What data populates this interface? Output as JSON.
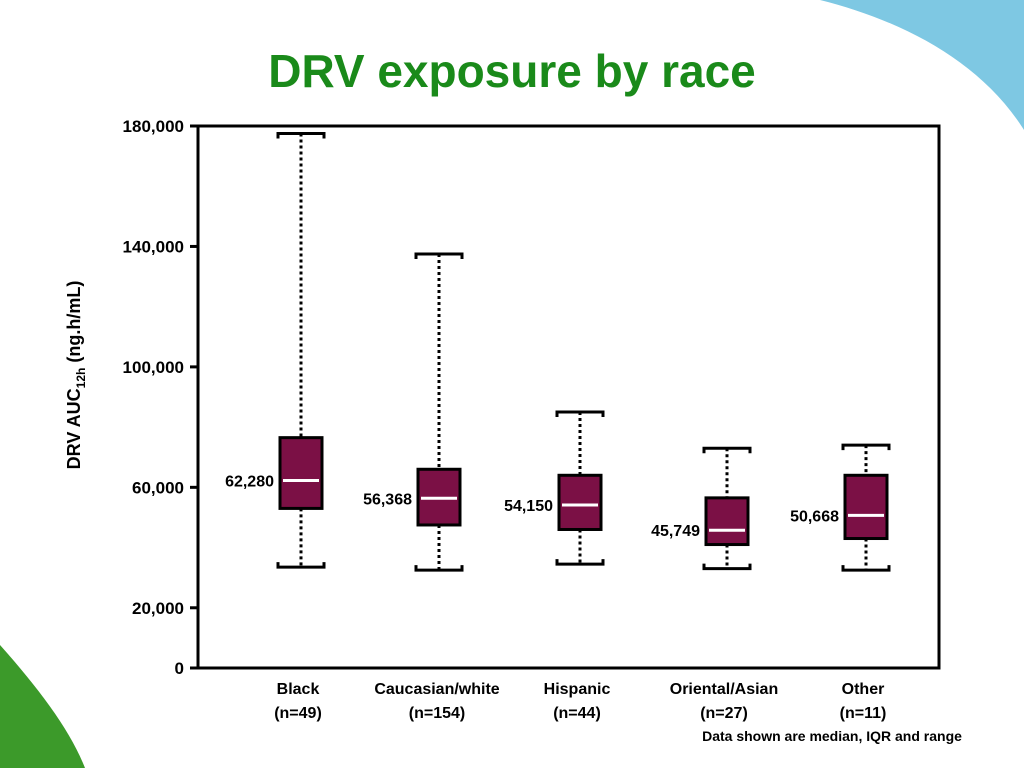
{
  "slide": {
    "title": "DRV exposure by race",
    "footnote": "Data shown are median, IQR and range"
  },
  "colors": {
    "title": "#1a8a1a",
    "box_fill": "#7b1045",
    "median_line": "#ffffff",
    "corner_blue": "#7ec8e3",
    "corner_green": "#3c9a2a"
  },
  "chart_data": {
    "type": "boxplot",
    "ylabel_main": "DRV AUC",
    "ylabel_sub": "12h",
    "ylabel_unit": " (ng.h/mL)",
    "ylim": [
      0,
      180000
    ],
    "yticks": [
      0,
      20000,
      60000,
      100000,
      140000,
      180000
    ],
    "ytick_labels": [
      "0",
      "20,000",
      "60,000",
      "100,000",
      "140,000",
      "180,000"
    ],
    "groups": [
      {
        "name": "Black",
        "n": "(n=49)",
        "min": 33500,
        "q1": 53000,
        "median": 62280,
        "q3": 76500,
        "max": 177500,
        "median_label": "62,280"
      },
      {
        "name": "Caucasian/white",
        "n": "(n=154)",
        "min": 32500,
        "q1": 47500,
        "median": 56368,
        "q3": 66000,
        "max": 137500,
        "median_label": "56,368"
      },
      {
        "name": "Hispanic",
        "n": "(n=44)",
        "min": 34500,
        "q1": 46000,
        "median": 54150,
        "q3": 64000,
        "max": 85000,
        "median_label": "54,150"
      },
      {
        "name": "Oriental/Asian",
        "n": "(n=27)",
        "min": 33000,
        "q1": 41000,
        "median": 45749,
        "q3": 56500,
        "max": 73000,
        "median_label": "45,749"
      },
      {
        "name": "Other",
        "n": "(n=11)",
        "min": 32500,
        "q1": 43000,
        "median": 50668,
        "q3": 64000,
        "max": 74000,
        "median_label": "50,668"
      }
    ]
  }
}
